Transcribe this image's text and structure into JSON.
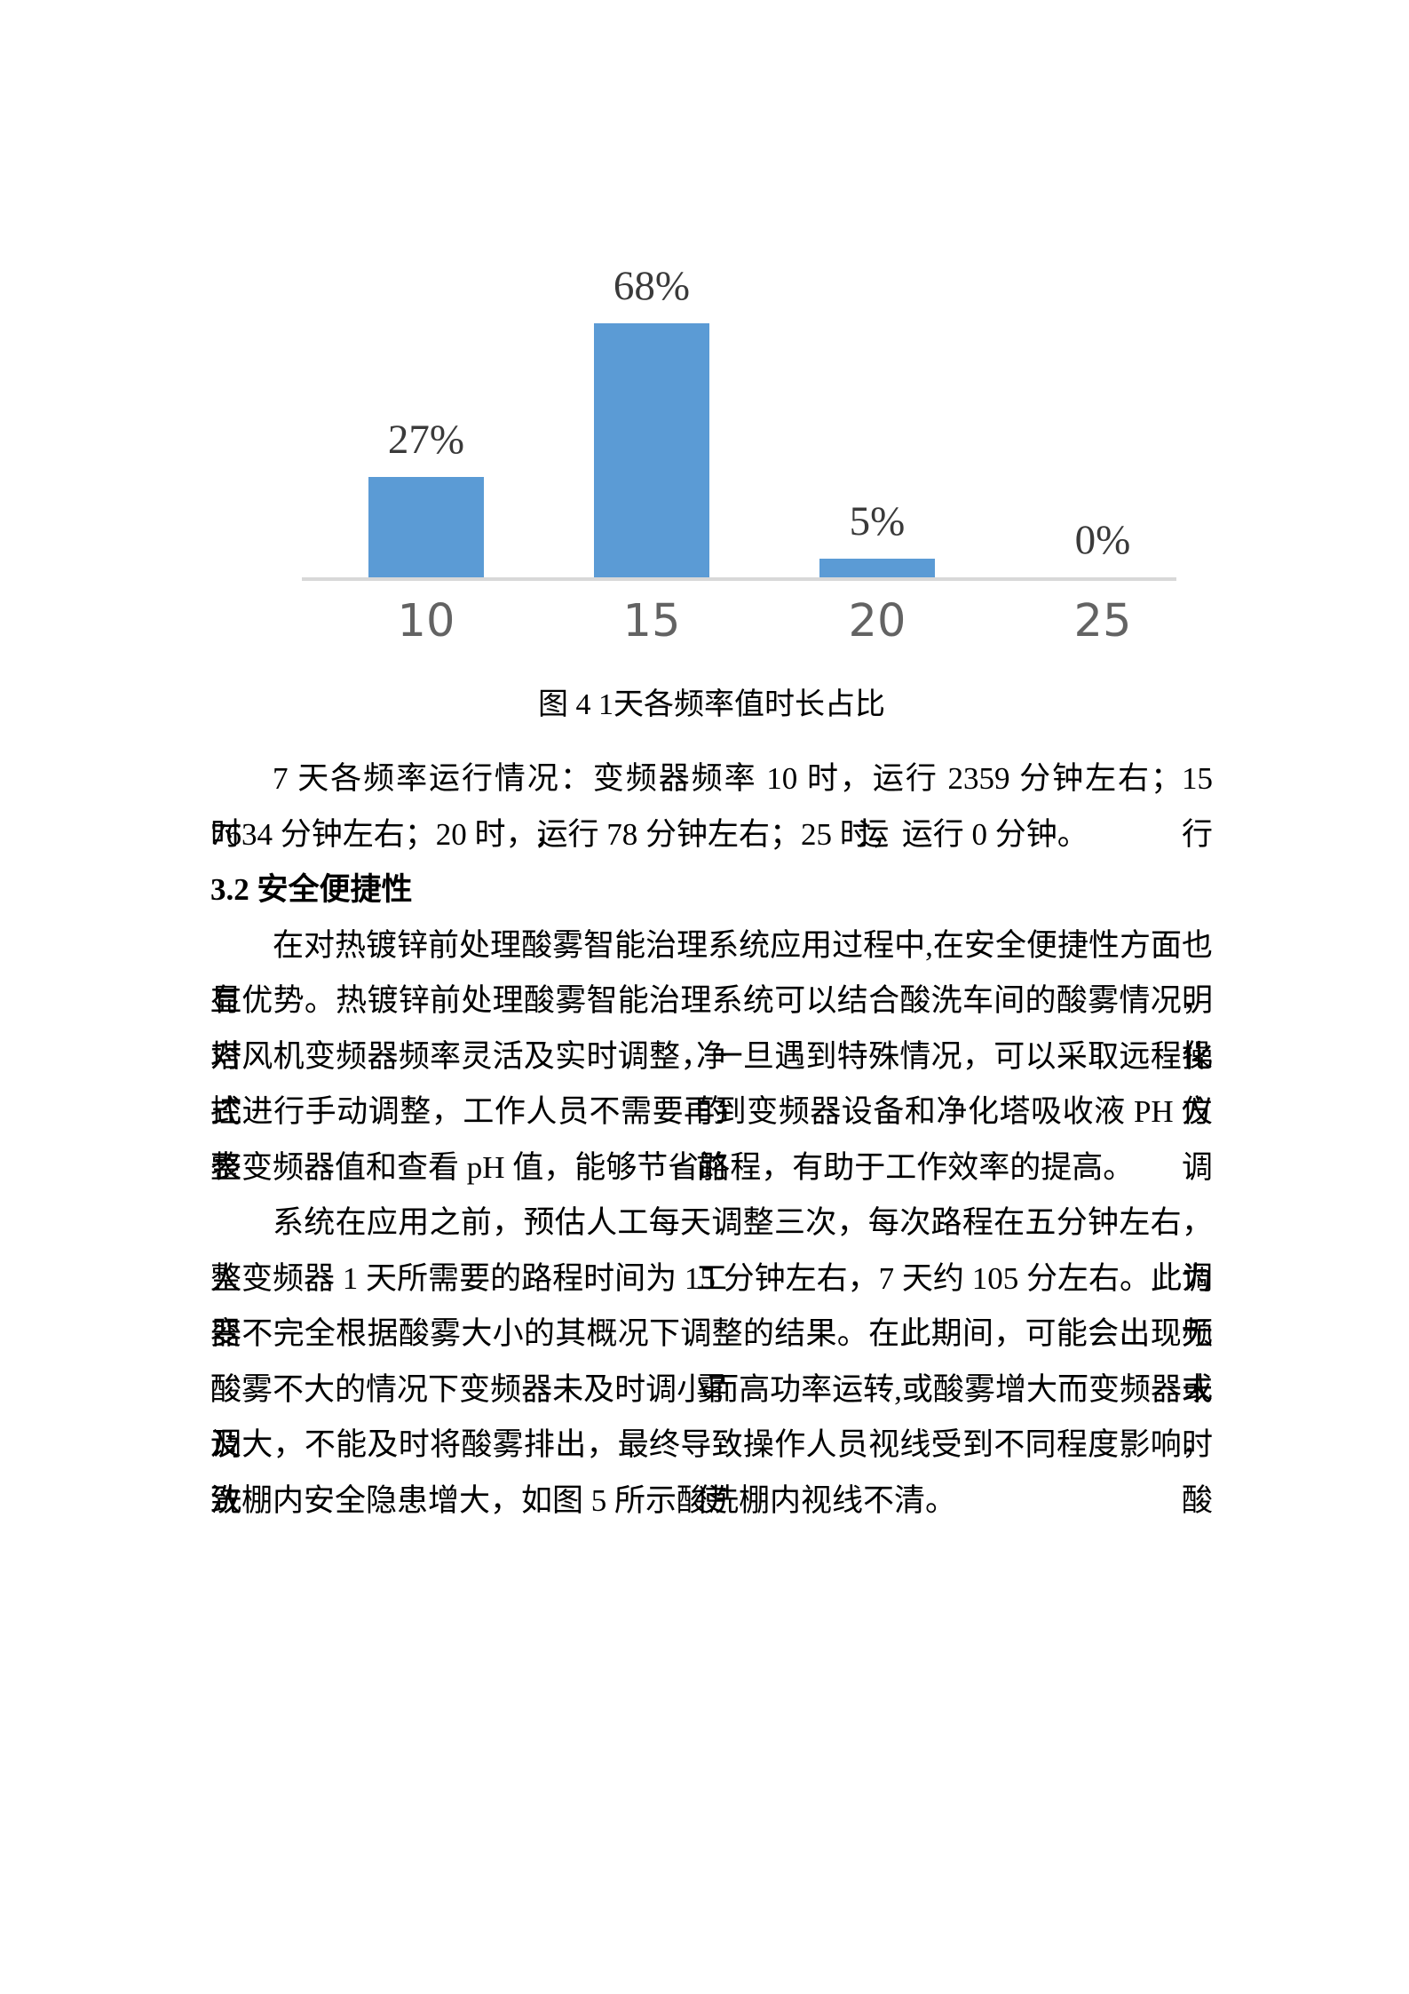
{
  "chart_data": {
    "type": "bar",
    "title": "",
    "xlabel": "",
    "ylabel": "",
    "categories": [
      "10",
      "15",
      "20",
      "25"
    ],
    "values": [
      27,
      68,
      5,
      0
    ],
    "data_labels": [
      "27%",
      "68%",
      "5%",
      "0%"
    ],
    "ylim": [
      0,
      100
    ],
    "grid": false,
    "legend": "none",
    "y_axis_visible": false,
    "bar_color": "#5B9BD5",
    "baseline_color": "#D8D8D8",
    "tick_label_color": "#636363",
    "data_label_color": "#3A3A3A"
  },
  "caption": "图 4 1天各频率值时长占比",
  "body": {
    "lines": [
      {
        "text": "7 天各频率运行情况：变频器频率 10 时，运行 2359 分钟左右；15 时，运行",
        "cls": "indent justify"
      },
      {
        "text": "7634 分钟左右；20 时，运行 78 分钟左右；25 时，运行 0 分钟。",
        "cls": ""
      },
      {
        "text": "3.2 安全便捷性",
        "cls": "heading"
      },
      {
        "text": "在对热镀锌前处理酸雾智能治理系统应用过程中,在安全便捷性方面也有明",
        "cls": "indent justify"
      },
      {
        "text": "显优势。热镀锌前处理酸雾智能治理系统可以结合酸洗车间的酸雾情况，对净化",
        "cls": "justify"
      },
      {
        "text": "塔风机变频器频率灵活及实时调整，一旦遇到特殊情况，可以采取远程操控的方",
        "cls": "justify"
      },
      {
        "text": "式进行手动调整，工作人员不需要再到变频器设备和净化塔吸收液 PH 仪表前调",
        "cls": "justify"
      },
      {
        "text": "整变频器值和查看 pH 值，能够节省路程，有助于工作效率的提高。",
        "cls": ""
      },
      {
        "text": "系统在应用之前，预估人工每天调整三次，每次路程在五分钟左右，人工调",
        "cls": "indent justify"
      },
      {
        "text": "整变频器 1 天所需要的路程时间为 15 分钟左右，7 天约 105 分左右。此为变频",
        "cls": "justify"
      },
      {
        "text": "器不完全根据酸雾大小的其概况下调整的结果。在此期间，可能会出现无酸雾或",
        "cls": "justify"
      },
      {
        "text": "酸雾不大的情况下变频器未及时调小而高功率运转,或酸雾增大而变频器未及时",
        "cls": "justify"
      },
      {
        "text": "调大，不能及时将酸雾排出，最终导致操作人员视线受到不同程度影响，致使酸",
        "cls": "justify"
      },
      {
        "text": "洗棚内安全隐患增大，如图 5 所示酸洗棚内视线不清。",
        "cls": ""
      }
    ]
  }
}
